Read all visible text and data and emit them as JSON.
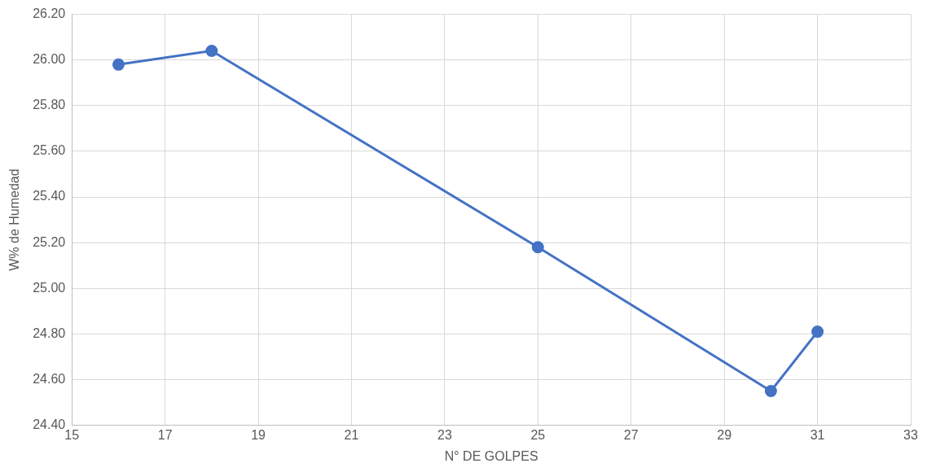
{
  "chart_data": {
    "type": "line",
    "xlabel": "N° DE GOLPES",
    "ylabel": "W% de Humedad",
    "x": [
      16,
      18,
      25,
      30,
      31
    ],
    "series": [
      {
        "color": "#4472c4",
        "values": [
          25.98,
          26.04,
          25.18,
          24.55,
          24.81
        ]
      }
    ],
    "xlim": [
      15,
      33
    ],
    "xticks": [
      15,
      17,
      19,
      21,
      23,
      25,
      27,
      29,
      31,
      33
    ],
    "ylim": [
      24.4,
      26.2
    ],
    "yticks": [
      {
        "value": 24.4,
        "label": "24.40"
      },
      {
        "value": 24.6,
        "label": "24.60"
      },
      {
        "value": 24.8,
        "label": "24.80"
      },
      {
        "value": 25,
        "label": "25.00"
      },
      {
        "value": 25.2,
        "label": "25.20"
      },
      {
        "value": 25.4,
        "label": "25.40"
      },
      {
        "value": 25.6,
        "label": "25.60"
      },
      {
        "value": 25.8,
        "label": "25.80"
      },
      {
        "value": 26,
        "label": "26.00"
      },
      {
        "value": 26.2,
        "label": "26.20"
      }
    ],
    "grid": true,
    "marker": "circle",
    "line_style": "solid",
    "legend": false
  }
}
